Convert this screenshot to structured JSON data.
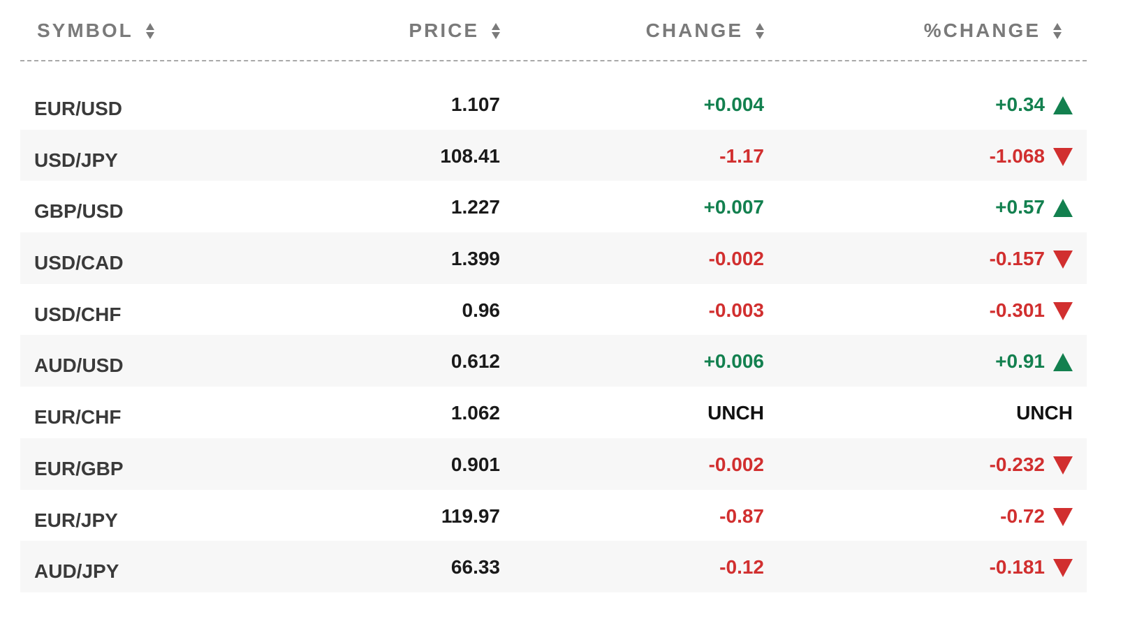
{
  "colors": {
    "positive": "#13804f",
    "negative": "#d12f2f",
    "header": "#7a7a7a"
  },
  "header": {
    "symbol": "SYMBOL",
    "price": "PRICE",
    "change": "CHANGE",
    "pct_change": "%CHANGE"
  },
  "rows": [
    {
      "symbol": "EUR/USD",
      "price": "1.107",
      "change": "+0.004",
      "pct": "+0.34",
      "dir": "up"
    },
    {
      "symbol": "USD/JPY",
      "price": "108.41",
      "change": "-1.17",
      "pct": "-1.068",
      "dir": "down"
    },
    {
      "symbol": "GBP/USD",
      "price": "1.227",
      "change": "+0.007",
      "pct": "+0.57",
      "dir": "up"
    },
    {
      "symbol": "USD/CAD",
      "price": "1.399",
      "change": "-0.002",
      "pct": "-0.157",
      "dir": "down"
    },
    {
      "symbol": "USD/CHF",
      "price": "0.96",
      "change": "-0.003",
      "pct": "-0.301",
      "dir": "down"
    },
    {
      "symbol": "AUD/USD",
      "price": "0.612",
      "change": "+0.006",
      "pct": "+0.91",
      "dir": "up"
    },
    {
      "symbol": "EUR/CHF",
      "price": "1.062",
      "change": "UNCH",
      "pct": "UNCH",
      "dir": "none"
    },
    {
      "symbol": "EUR/GBP",
      "price": "0.901",
      "change": "-0.002",
      "pct": "-0.232",
      "dir": "down"
    },
    {
      "symbol": "EUR/JPY",
      "price": "119.97",
      "change": "-0.87",
      "pct": "-0.72",
      "dir": "down"
    },
    {
      "symbol": "AUD/JPY",
      "price": "66.33",
      "change": "-0.12",
      "pct": "-0.181",
      "dir": "down"
    }
  ]
}
